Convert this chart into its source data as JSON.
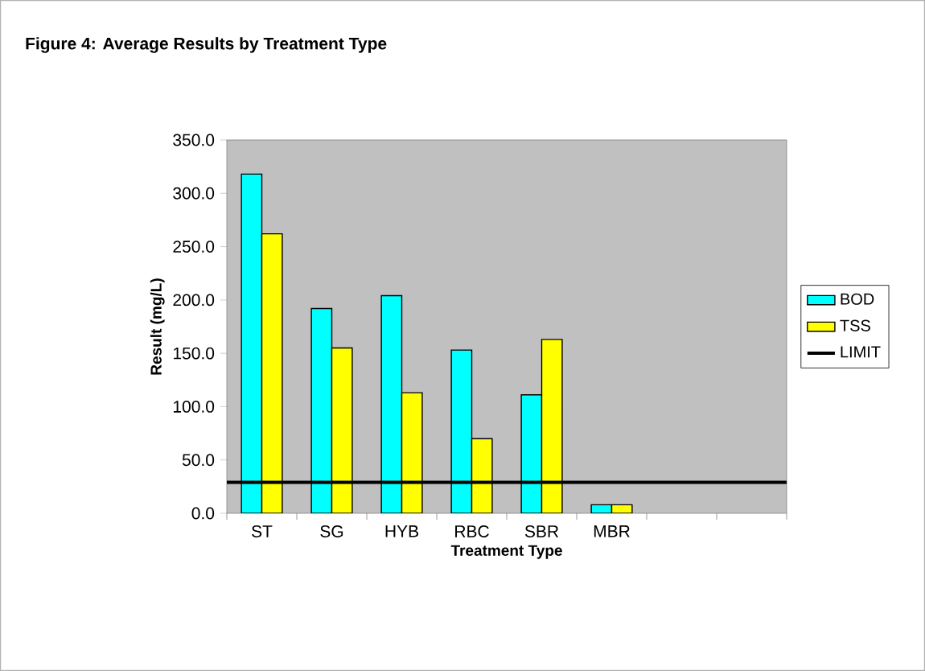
{
  "chart_data": {
    "type": "bar",
    "title": "Figure 4: Average Results by Treatment Type",
    "xlabel": "Treatment Type",
    "ylabel": "Result (mg/L)",
    "categories": [
      "ST",
      "SG",
      "HYB",
      "RBC",
      "SBR",
      "MBR",
      null,
      null
    ],
    "series": [
      {
        "name": "BOD",
        "color": "#00ffff",
        "values": [
          318,
          192,
          204,
          153,
          111,
          8,
          null,
          null
        ]
      },
      {
        "name": "TSS",
        "color": "#ffff00",
        "values": [
          262,
          155,
          113,
          70,
          163,
          8,
          null,
          null
        ]
      }
    ],
    "ref_lines": [
      {
        "axis": "y",
        "value": 29,
        "label": "LIMIT",
        "color": "#000000",
        "line_style": "solid"
      }
    ],
    "ylim": [
      0,
      350
    ],
    "yticks": [
      {
        "value": 0,
        "label": "0.0"
      },
      {
        "value": 50,
        "label": "50.0"
      },
      {
        "value": 100,
        "label": "100.0"
      },
      {
        "value": 150,
        "label": "150.0"
      },
      {
        "value": 200,
        "label": "200.0"
      },
      {
        "value": 250,
        "label": "250.0"
      },
      {
        "value": 300,
        "label": "300.0"
      },
      {
        "value": 350,
        "label": "350.0"
      }
    ],
    "legend": "right"
  }
}
